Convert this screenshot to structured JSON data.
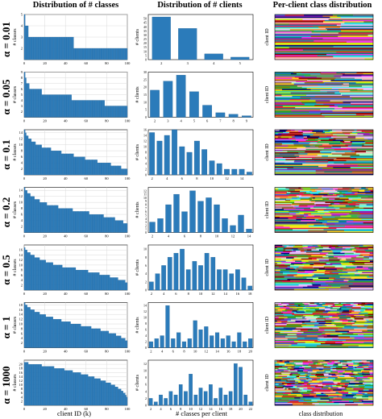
{
  "header": {
    "col1": "Distribution of # classes",
    "col2": "Distribution of # clients",
    "col3": "Per-client class distribution"
  },
  "footer": {
    "col1": "client ID (k)",
    "col2": "# classes per client",
    "col3": "class distribution"
  },
  "y_labels": {
    "col1": "# classes",
    "col2": "# clients",
    "col3": "client ID"
  },
  "colors": {
    "bar": "#2b7bba",
    "bar_edge": "#1b5e92",
    "grid": "#d9d9d9"
  },
  "chart_data": [
    {
      "type": "bar",
      "row_label": "α = 0.01",
      "classes_chart": {
        "xlim": [
          0,
          100
        ],
        "x_ticks": [
          0,
          20,
          40,
          60,
          80,
          100
        ],
        "y_ticks": [
          2,
          3,
          4,
          5
        ],
        "ylim": [
          1,
          5
        ],
        "values": [
          5,
          4,
          4,
          4,
          3,
          3,
          3,
          3,
          3,
          3,
          3,
          3,
          3,
          3,
          3,
          3,
          3,
          3,
          3,
          3,
          3,
          3,
          3,
          3,
          3,
          3,
          3,
          3,
          3,
          3,
          3,
          3,
          3,
          3,
          3,
          3,
          3,
          3,
          3,
          3,
          3,
          3,
          3,
          3,
          3,
          3,
          3,
          3,
          2,
          2,
          2,
          2,
          2,
          2,
          2,
          2,
          2,
          2,
          2,
          2,
          2,
          2,
          2,
          2,
          2,
          2,
          2,
          2,
          2,
          2,
          2,
          2,
          2,
          2,
          2,
          2,
          2,
          2,
          2,
          2,
          2,
          2,
          2,
          2,
          2,
          2,
          2,
          2,
          2,
          2,
          2,
          2,
          2,
          2,
          2,
          2,
          2,
          2,
          2,
          2
        ]
      },
      "clients_chart": {
        "categories": [
          2,
          3,
          4,
          5
        ],
        "values": [
          52,
          38,
          7,
          3
        ],
        "ylim": [
          0,
          55
        ],
        "y_ticks": [
          0,
          5,
          10,
          15,
          20,
          25,
          30,
          35,
          40,
          45,
          50
        ]
      }
    },
    {
      "type": "bar",
      "row_label": "α = 0.05",
      "classes_chart": {
        "xlim": [
          0,
          100
        ],
        "x_ticks": [
          0,
          20,
          40,
          60,
          80,
          100
        ],
        "y_ticks": [
          2,
          3,
          4,
          5,
          6,
          7,
          8,
          9
        ],
        "ylim": [
          1,
          9
        ],
        "values": [
          9,
          8,
          7,
          7,
          7,
          6,
          6,
          6,
          6,
          6,
          6,
          6,
          6,
          6,
          6,
          6,
          6,
          5,
          5,
          5,
          5,
          5,
          5,
          5,
          5,
          5,
          5,
          5,
          5,
          5,
          5,
          5,
          5,
          5,
          5,
          5,
          5,
          5,
          5,
          5,
          5,
          5,
          5,
          5,
          5,
          5,
          4,
          4,
          4,
          4,
          4,
          4,
          4,
          4,
          4,
          4,
          4,
          4,
          4,
          4,
          4,
          4,
          4,
          4,
          4,
          4,
          4,
          4,
          4,
          4,
          4,
          4,
          4,
          4,
          4,
          4,
          4,
          4,
          3,
          3,
          3,
          3,
          3,
          3,
          3,
          3,
          3,
          3,
          3,
          3,
          3,
          3,
          3,
          3,
          3,
          3,
          3,
          3,
          3,
          3
        ]
      },
      "clients_chart": {
        "categories": [
          2,
          3,
          4,
          5,
          6,
          7,
          8,
          9
        ],
        "values": [
          18,
          24,
          28,
          17,
          8,
          3,
          2,
          1
        ],
        "ylim": [
          0,
          30
        ],
        "y_ticks": [
          0,
          5,
          10,
          15,
          20,
          25,
          30
        ]
      }
    },
    {
      "type": "bar",
      "row_label": "α = 0.1",
      "classes_chart": {
        "xlim": [
          0,
          100
        ],
        "x_ticks": [
          0,
          20,
          40,
          60,
          80,
          100
        ],
        "y_ticks": [
          2,
          4,
          6,
          8,
          10,
          12,
          14
        ],
        "ylim": [
          0,
          15
        ],
        "values": [
          15,
          14,
          13,
          13,
          12,
          12,
          12,
          11,
          11,
          11,
          11,
          10,
          10,
          10,
          10,
          10,
          10,
          9,
          9,
          9,
          9,
          9,
          9,
          9,
          9,
          9,
          8,
          8,
          8,
          8,
          8,
          8,
          8,
          8,
          8,
          8,
          7,
          7,
          7,
          7,
          7,
          7,
          7,
          7,
          7,
          7,
          7,
          7,
          6,
          6,
          6,
          6,
          6,
          6,
          6,
          6,
          6,
          6,
          6,
          5,
          5,
          5,
          5,
          5,
          5,
          5,
          5,
          5,
          5,
          5,
          5,
          4,
          4,
          4,
          4,
          4,
          4,
          4,
          4,
          4,
          4,
          4,
          4,
          4,
          3,
          3,
          3,
          3,
          3,
          3,
          3,
          3,
          3,
          3,
          2,
          2,
          2,
          2,
          2,
          2
        ]
      },
      "clients_chart": {
        "categories": [
          2,
          3,
          4,
          5,
          6,
          7,
          8,
          9,
          10,
          11,
          12,
          13,
          14,
          15
        ],
        "values": [
          15,
          12,
          14,
          16,
          10,
          8,
          12,
          9,
          5,
          4,
          2,
          2,
          2,
          1
        ],
        "ylim": [
          0,
          16
        ],
        "y_ticks": [
          0,
          2,
          4,
          6,
          8,
          10,
          12,
          14,
          16
        ]
      }
    },
    {
      "type": "bar",
      "row_label": "α = 0.2",
      "classes_chart": {
        "xlim": [
          0,
          100
        ],
        "x_ticks": [
          0,
          20,
          40,
          60,
          80,
          100
        ],
        "y_ticks": [
          2,
          4,
          6,
          8,
          10,
          12,
          14
        ],
        "ylim": [
          0,
          15
        ],
        "values": [
          15,
          14,
          14,
          13,
          13,
          13,
          12,
          12,
          12,
          12,
          11,
          11,
          11,
          11,
          11,
          10,
          10,
          10,
          10,
          10,
          10,
          10,
          9,
          9,
          9,
          9,
          9,
          9,
          9,
          9,
          9,
          9,
          9,
          8,
          8,
          8,
          8,
          8,
          8,
          8,
          8,
          8,
          8,
          8,
          8,
          8,
          8,
          7,
          7,
          7,
          7,
          7,
          7,
          7,
          7,
          7,
          7,
          7,
          7,
          7,
          7,
          7,
          7,
          6,
          6,
          6,
          6,
          6,
          6,
          6,
          6,
          6,
          6,
          6,
          6,
          6,
          6,
          5,
          5,
          5,
          5,
          5,
          5,
          5,
          5,
          5,
          5,
          5,
          4,
          4,
          4,
          4,
          4,
          4,
          4,
          4,
          3,
          3,
          3,
          3
        ]
      },
      "clients_chart": {
        "categories": [
          2,
          3,
          4,
          5,
          6,
          7,
          8,
          9,
          10,
          11,
          12,
          13,
          14
        ],
        "values": [
          3,
          4,
          8,
          11,
          6,
          12,
          9,
          10,
          8,
          4,
          2,
          5,
          1
        ],
        "ylim": [
          0,
          13
        ],
        "y_ticks": [
          0,
          1,
          2,
          3,
          4,
          5,
          6,
          7,
          8,
          9,
          10,
          11,
          12
        ]
      }
    },
    {
      "type": "bar",
      "row_label": "α = 0.5",
      "classes_chart": {
        "xlim": [
          0,
          100
        ],
        "x_ticks": [
          0,
          20,
          40,
          60,
          80,
          100
        ],
        "y_ticks": [
          2,
          4,
          6,
          8,
          10,
          12,
          14,
          16
        ],
        "ylim": [
          0,
          18
        ],
        "values": [
          17,
          16,
          16,
          15,
          15,
          15,
          14,
          14,
          14,
          14,
          13,
          13,
          13,
          13,
          13,
          12,
          12,
          12,
          12,
          12,
          12,
          11,
          11,
          11,
          11,
          11,
          11,
          11,
          10,
          10,
          10,
          10,
          10,
          10,
          10,
          10,
          10,
          9,
          9,
          9,
          9,
          9,
          9,
          9,
          9,
          9,
          9,
          9,
          9,
          9,
          8,
          8,
          8,
          8,
          8,
          8,
          8,
          8,
          8,
          8,
          8,
          8,
          7,
          7,
          7,
          7,
          7,
          7,
          7,
          7,
          7,
          7,
          7,
          6,
          6,
          6,
          6,
          6,
          6,
          6,
          6,
          6,
          6,
          5,
          5,
          5,
          5,
          5,
          5,
          5,
          5,
          4,
          4,
          4,
          4,
          4,
          4,
          4,
          3,
          3
        ]
      },
      "clients_chart": {
        "categories": [
          2,
          3,
          4,
          5,
          6,
          7,
          8,
          9,
          10,
          11,
          12,
          13,
          14,
          15,
          16,
          17,
          18
        ],
        "values": [
          2,
          4,
          6,
          8,
          9,
          10,
          5,
          7,
          6,
          9,
          8,
          5,
          5,
          4,
          5,
          3,
          1
        ],
        "ylim": [
          0,
          11
        ],
        "y_ticks": [
          0,
          2,
          4,
          6,
          8,
          10
        ]
      }
    },
    {
      "type": "bar",
      "row_label": "α = 1",
      "classes_chart": {
        "xlim": [
          0,
          100
        ],
        "x_ticks": [
          0,
          20,
          40,
          60,
          80,
          100
        ],
        "y_ticks": [
          2,
          4,
          6,
          8,
          10,
          12,
          14,
          16,
          18
        ],
        "ylim": [
          0,
          19
        ],
        "values": [
          19,
          18,
          18,
          17,
          17,
          17,
          16,
          16,
          16,
          16,
          15,
          15,
          15,
          15,
          15,
          14,
          14,
          14,
          14,
          14,
          14,
          13,
          13,
          13,
          13,
          13,
          13,
          13,
          12,
          12,
          12,
          12,
          12,
          12,
          12,
          12,
          11,
          11,
          11,
          11,
          11,
          11,
          11,
          11,
          11,
          10,
          10,
          10,
          10,
          10,
          10,
          10,
          10,
          10,
          10,
          9,
          9,
          9,
          9,
          9,
          9,
          9,
          9,
          9,
          9,
          8,
          8,
          8,
          8,
          8,
          8,
          8,
          8,
          8,
          7,
          7,
          7,
          7,
          7,
          7,
          7,
          7,
          6,
          6,
          6,
          6,
          6,
          6,
          6,
          5,
          5,
          5,
          5,
          5,
          4,
          4,
          4,
          4,
          3,
          3
        ]
      },
      "clients_chart": {
        "categories": [
          2,
          3,
          4,
          5,
          6,
          7,
          8,
          9,
          10,
          11,
          12,
          13,
          14,
          15,
          16,
          17,
          18,
          19,
          20
        ],
        "values": [
          2,
          3,
          4,
          14,
          3,
          5,
          2,
          3,
          9,
          6,
          7,
          4,
          5,
          3,
          4,
          2,
          5,
          2,
          3
        ],
        "ylim": [
          0,
          15
        ],
        "y_ticks": [
          0,
          2,
          4,
          6,
          8,
          10,
          12,
          14
        ]
      }
    },
    {
      "type": "bar",
      "row_label": "α = 1000",
      "classes_chart": {
        "xlim": [
          0,
          100
        ],
        "x_ticks": [
          0,
          20,
          40,
          60,
          80,
          100
        ],
        "y_ticks": [
          2,
          4,
          6,
          8,
          10,
          12,
          14,
          16,
          18,
          20
        ],
        "ylim": [
          0,
          22
        ],
        "values": [
          21,
          21,
          21,
          21,
          20,
          20,
          20,
          20,
          20,
          20,
          20,
          20,
          20,
          20,
          20,
          20,
          20,
          19,
          19,
          19,
          19,
          19,
          19,
          19,
          19,
          19,
          19,
          19,
          19,
          18,
          18,
          18,
          18,
          18,
          18,
          18,
          18,
          18,
          18,
          17,
          17,
          17,
          17,
          17,
          17,
          17,
          17,
          16,
          16,
          16,
          16,
          16,
          16,
          16,
          16,
          15,
          15,
          15,
          15,
          15,
          15,
          15,
          14,
          14,
          14,
          14,
          14,
          14,
          13,
          13,
          13,
          13,
          13,
          13,
          12,
          12,
          12,
          12,
          12,
          11,
          11,
          11,
          11,
          11,
          10,
          10,
          10,
          10,
          9,
          9,
          9,
          8,
          8,
          8,
          7,
          7,
          6,
          6,
          5,
          4
        ]
      },
      "clients_chart": {
        "categories": [
          2,
          3,
          4,
          5,
          6,
          7,
          8,
          9,
          10,
          11,
          12,
          13,
          14,
          15,
          16,
          17,
          18,
          19,
          20,
          21,
          22
        ],
        "values": [
          2,
          1,
          3,
          2,
          4,
          3,
          6,
          4,
          9,
          3,
          5,
          4,
          6,
          2,
          5,
          3,
          4,
          12,
          11,
          3,
          1
        ],
        "ylim": [
          0,
          13
        ],
        "y_ticks": [
          0,
          2,
          4,
          6,
          8,
          10,
          12
        ]
      }
    }
  ]
}
